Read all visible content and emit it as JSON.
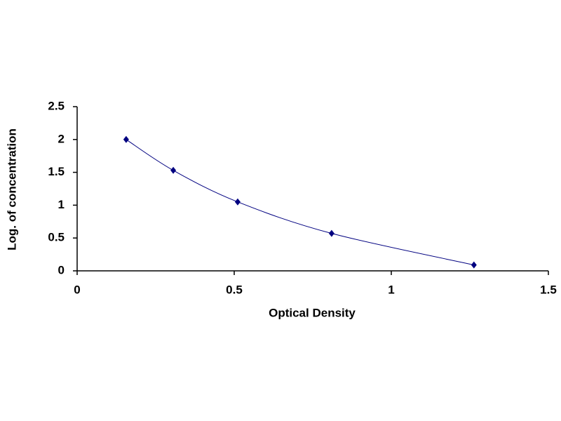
{
  "chart_data": {
    "type": "scatter",
    "x_label": "Optical Density",
    "y_label": "Log. of concentration",
    "x": [
      0.156,
      0.306,
      0.511,
      0.81,
      1.263
    ],
    "values": [
      2.0,
      1.53,
      1.05,
      0.57,
      0.09
    ],
    "color": "#000080",
    "smooth_line": true,
    "xlim": [
      0,
      1.5
    ],
    "xticks": [
      0,
      0.5,
      1,
      1.5
    ],
    "ylim": [
      0,
      2.5
    ],
    "yticks": [
      0,
      0.5,
      1,
      1.5,
      2,
      2.5
    ],
    "grid": false
  }
}
